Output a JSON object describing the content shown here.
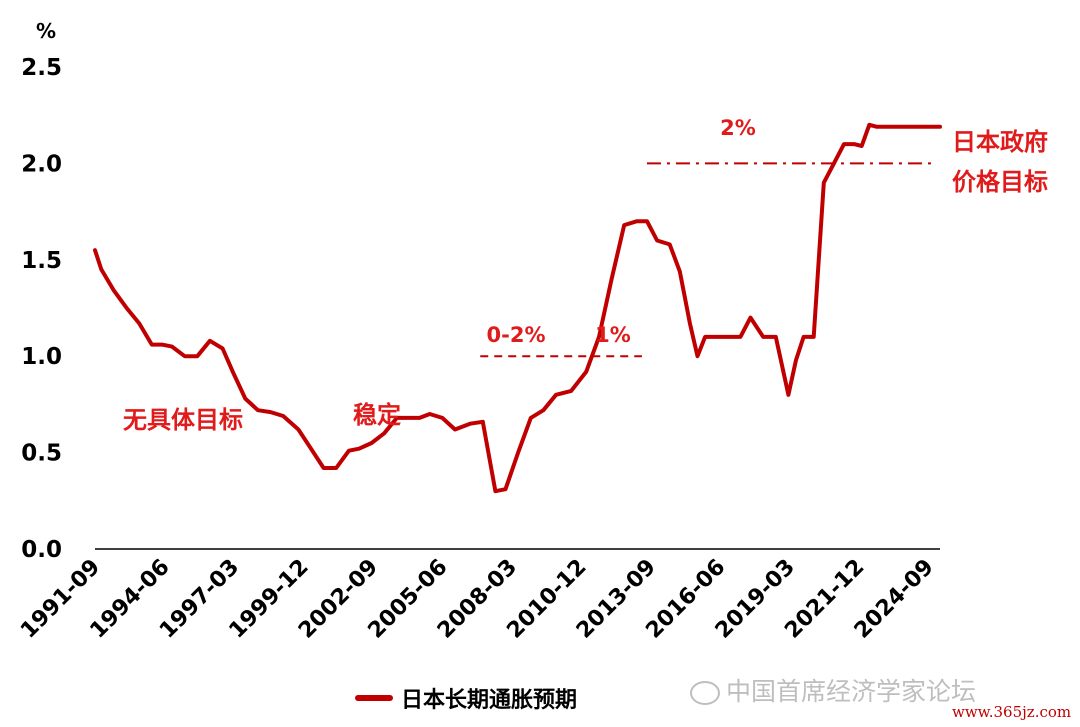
{
  "chart_data": {
    "type": "line",
    "unit_label": "%",
    "ylim": [
      0,
      2.5
    ],
    "yticks": [
      "0.0",
      "0.5",
      "1.0",
      "1.5",
      "2.0",
      "2.5"
    ],
    "xticks": [
      "1991-09",
      "1994-06",
      "1997-03",
      "1999-12",
      "2002-09",
      "2005-06",
      "2008-03",
      "2010-12",
      "2013-09",
      "2016-06",
      "2019-03",
      "2021-12",
      "2024-09"
    ],
    "series": [
      {
        "name": "日本长期通胀预期",
        "color": "#c00000",
        "x": [
          1991.75,
          1992.0,
          1992.5,
          1993.0,
          1993.5,
          1994.0,
          1994.4,
          1994.8,
          1995.3,
          1995.8,
          1996.3,
          1996.8,
          1997.2,
          1997.7,
          1998.2,
          1998.7,
          1999.2,
          1999.8,
          2000.3,
          2000.8,
          2001.3,
          2001.8,
          2002.2,
          2002.7,
          2003.2,
          2003.7,
          2004.2,
          2004.6,
          2005.0,
          2005.5,
          2006.0,
          2006.6,
          2007.1,
          2007.6,
          2008.0,
          2008.5,
          2009.0,
          2009.5,
          2010.0,
          2010.6,
          2011.2,
          2011.7,
          2012.2,
          2012.7,
          2013.2,
          2013.6,
          2014.0,
          2014.5,
          2014.9,
          2015.3,
          2015.6,
          2015.9,
          2016.3,
          2016.7,
          2017.0,
          2017.3,
          2017.7,
          2018.2,
          2018.7,
          2019.2,
          2019.5,
          2019.8,
          2020.2,
          2020.6,
          2021.0,
          2021.4,
          2021.8,
          2022.1,
          2022.4,
          2022.7,
          2023.0,
          2023.3,
          2023.6,
          2024.0,
          2024.4,
          2024.8,
          2025.2
        ],
        "values": [
          1.55,
          1.45,
          1.34,
          1.25,
          1.17,
          1.06,
          1.06,
          1.05,
          1.0,
          1.0,
          1.08,
          1.04,
          0.92,
          0.78,
          0.72,
          0.71,
          0.69,
          0.62,
          0.52,
          0.42,
          0.42,
          0.51,
          0.52,
          0.55,
          0.6,
          0.68,
          0.68,
          0.68,
          0.7,
          0.68,
          0.62,
          0.65,
          0.66,
          0.3,
          0.31,
          0.5,
          0.68,
          0.72,
          0.8,
          0.82,
          0.92,
          1.1,
          1.4,
          1.68,
          1.7,
          1.7,
          1.6,
          1.58,
          1.44,
          1.17,
          1.0,
          1.1,
          1.1,
          1.1,
          1.1,
          1.1,
          1.2,
          1.1,
          1.1,
          0.8,
          0.98,
          1.1,
          1.1,
          1.9,
          2.0,
          2.1,
          2.1,
          2.09,
          2.2,
          2.19,
          2.19,
          2.19,
          2.19,
          2.19,
          2.19,
          2.19,
          2.19
        ]
      }
    ],
    "targets": [
      {
        "label": "0-2%",
        "y": 1.0,
        "x_start": 2007.0,
        "x_end": 2013.4,
        "style": "dashed"
      },
      {
        "label": "1%",
        "y": 1.0,
        "x_start": 2007.0,
        "x_end": 2013.4,
        "style": "dashed"
      },
      {
        "label": "2%",
        "y": 2.0,
        "x_start": 2013.6,
        "x_end": 2025.0,
        "style": "dash-dot"
      }
    ],
    "annotations": [
      "无具体目标",
      "稳定",
      "日本政府",
      "价格目标"
    ],
    "grid": false,
    "legend_position": "bottom"
  },
  "watermark": "中国首席经济学家论坛",
  "url": "www.365jz.com"
}
